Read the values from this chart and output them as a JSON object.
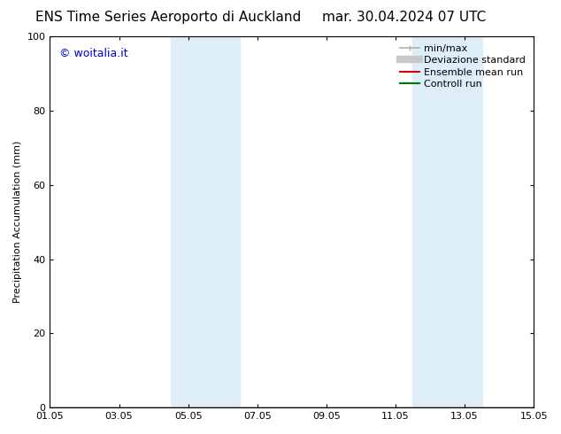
{
  "title_left": "ENS Time Series Aeroporto di Auckland",
  "title_right": "mar. 30.04.2024 07 UTC",
  "ylabel": "Precipitation Accumulation (mm)",
  "ylim": [
    0,
    100
  ],
  "yticks": [
    0,
    20,
    40,
    60,
    80,
    100
  ],
  "xtick_labels": [
    "01.05",
    "03.05",
    "05.05",
    "07.05",
    "09.05",
    "11.05",
    "13.05",
    "15.05"
  ],
  "xtick_positions": [
    0,
    2,
    4,
    6,
    8,
    10,
    12,
    14
  ],
  "xlim": [
    0,
    14
  ],
  "shaded_bands": [
    {
      "x_start": 3.5,
      "x_end": 5.5,
      "color": "#ddeef8",
      "alpha": 1.0
    },
    {
      "x_start": 10.5,
      "x_end": 12.5,
      "color": "#ddeef8",
      "alpha": 1.0
    }
  ],
  "legend_entries": [
    {
      "label": "min/max",
      "color": "#b0b0b0",
      "lw": 1.2,
      "style": "line_with_caps"
    },
    {
      "label": "Deviazione standard",
      "color": "#c8c8c8",
      "lw": 6,
      "style": "line"
    },
    {
      "label": "Ensemble mean run",
      "color": "#dd0000",
      "lw": 1.5,
      "style": "line"
    },
    {
      "label": "Controll run",
      "color": "#007700",
      "lw": 1.5,
      "style": "line"
    }
  ],
  "watermark_text": "© woitalia.it",
  "watermark_color": "#0000cc",
  "bg_color": "#ffffff",
  "title_fontsize": 11,
  "axis_label_fontsize": 8,
  "tick_fontsize": 8,
  "legend_fontsize": 8,
  "watermark_fontsize": 9
}
